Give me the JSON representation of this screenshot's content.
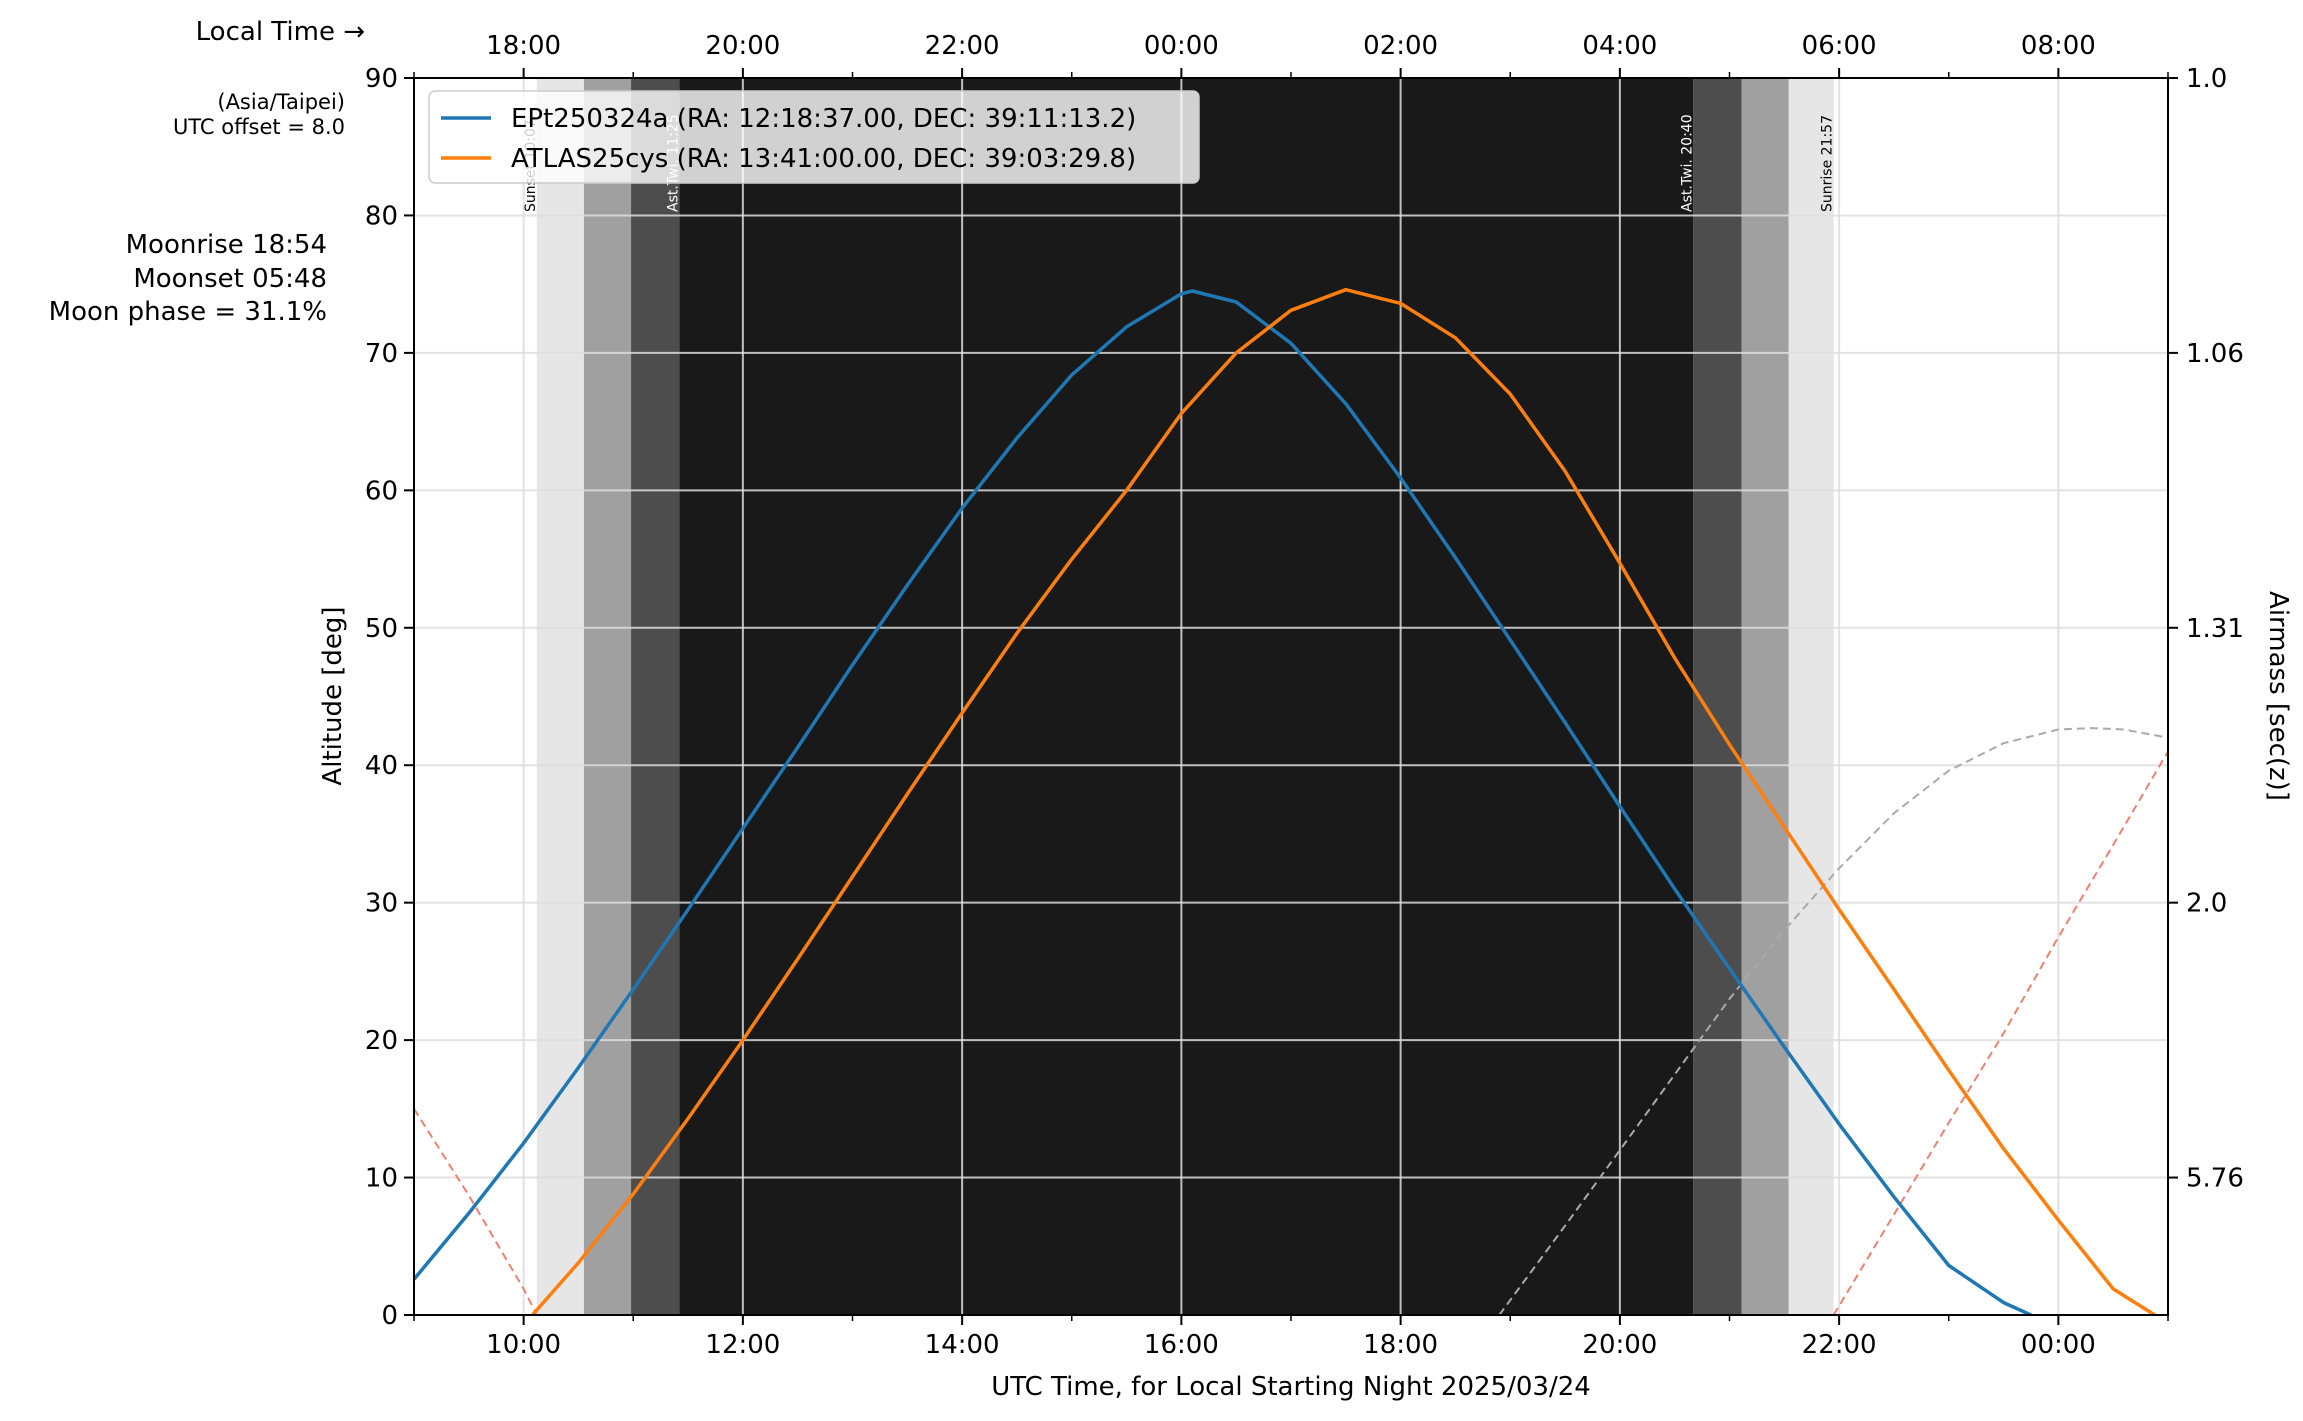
{
  "chart_data": {
    "type": "line",
    "title": "",
    "xlabel": "UTC Time, for Local Starting Night 2025/03/24",
    "ylabel": "Altitude [deg]",
    "y2label": "Airmass [sec(z)]",
    "top_axis_label": "Local Time →",
    "timezone": "(Asia/Taipei)",
    "utc_offset": "UTC offset = 8.0",
    "moon_info": {
      "moonrise": "Moonrise 18:54",
      "moonset": "Moonset 05:48",
      "phase": "Moon phase = 31.1%"
    },
    "xlim_utc_hours": [
      9.0,
      25.0
    ],
    "ylim": [
      0,
      90
    ],
    "x_ticks": [
      {
        "value": 10,
        "label": "10:00"
      },
      {
        "value": 12,
        "label": "12:00"
      },
      {
        "value": 14,
        "label": "14:00"
      },
      {
        "value": 16,
        "label": "16:00"
      },
      {
        "value": 18,
        "label": "18:00"
      },
      {
        "value": 20,
        "label": "20:00"
      },
      {
        "value": 22,
        "label": "22:00"
      },
      {
        "value": 24,
        "label": "00:00"
      }
    ],
    "top_ticks": [
      {
        "value": 10,
        "label": "18:00"
      },
      {
        "value": 12,
        "label": "20:00"
      },
      {
        "value": 14,
        "label": "22:00"
      },
      {
        "value": 16,
        "label": "00:00"
      },
      {
        "value": 18,
        "label": "02:00"
      },
      {
        "value": 20,
        "label": "04:00"
      },
      {
        "value": 22,
        "label": "06:00"
      },
      {
        "value": 24,
        "label": "08:00"
      }
    ],
    "y_ticks": [
      0,
      10,
      20,
      30,
      40,
      50,
      60,
      70,
      80,
      90
    ],
    "airmass_ticks": [
      {
        "alt": 90,
        "label": "1.0"
      },
      {
        "alt": 70,
        "label": "1.06"
      },
      {
        "alt": 50,
        "label": "1.31"
      },
      {
        "alt": 30,
        "label": "2.0"
      },
      {
        "alt": 10,
        "label": "5.76"
      }
    ],
    "twilight_bands": [
      {
        "start": 10.12,
        "end": 10.55,
        "color": "#e6e6e6"
      },
      {
        "start": 10.55,
        "end": 10.98,
        "color": "#a0a0a0"
      },
      {
        "start": 10.98,
        "end": 11.42,
        "color": "#4d4d4d"
      },
      {
        "start": 11.42,
        "end": 20.67,
        "color": "#191919"
      },
      {
        "start": 20.67,
        "end": 21.11,
        "color": "#4d4d4d"
      },
      {
        "start": 21.11,
        "end": 21.54,
        "color": "#a0a0a0"
      },
      {
        "start": 21.54,
        "end": 21.95,
        "color": "#e6e6e6"
      }
    ],
    "event_labels": [
      {
        "x": 10.12,
        "text": "Sunset 10:07",
        "color": "#000000"
      },
      {
        "x": 11.42,
        "text": "Ast.Twi. 11:25",
        "color": "#ffffff"
      },
      {
        "x": 20.67,
        "text": "Ast.Twi. 20:40",
        "color": "#ffffff"
      },
      {
        "x": 21.95,
        "text": "Sunrise 21:57",
        "color": "#000000"
      }
    ],
    "series": [
      {
        "name": "EPt250324a (RA: 12:18:37.00, DEC: 39:11:13.2)",
        "color": "#1f77b4",
        "x": [
          9.0,
          9.5,
          10.0,
          10.5,
          11.0,
          11.5,
          12.0,
          12.5,
          13.0,
          13.5,
          14.0,
          14.5,
          15.0,
          15.5,
          16.0,
          16.1,
          16.5,
          17.0,
          17.5,
          18.0,
          18.5,
          19.0,
          19.5,
          20.0,
          20.5,
          21.0,
          21.5,
          22.0,
          22.5,
          23.0,
          23.5,
          23.75
        ],
        "values": [
          2.6,
          7.4,
          12.5,
          18.0,
          23.7,
          29.5,
          35.4,
          41.3,
          47.3,
          53.1,
          58.7,
          63.8,
          68.4,
          71.9,
          74.3,
          74.5,
          73.7,
          70.7,
          66.3,
          60.9,
          55.1,
          49.1,
          43.1,
          37.0,
          31.0,
          25.2,
          19.5,
          13.9,
          8.6,
          3.6,
          0.9,
          0.0
        ]
      },
      {
        "name": "ATLAS25cys (RA: 13:41:00.00, DEC: 39:03:29.8)",
        "color": "#ff7f0e",
        "x": [
          10.08,
          10.5,
          11.0,
          11.5,
          12.0,
          12.5,
          13.0,
          13.5,
          14.0,
          14.5,
          15.0,
          15.5,
          16.0,
          16.5,
          17.0,
          17.5,
          18.0,
          18.5,
          19.0,
          19.5,
          20.0,
          20.5,
          21.0,
          21.5,
          22.0,
          22.5,
          23.0,
          23.5,
          24.0,
          24.5,
          24.88
        ],
        "values": [
          0.0,
          3.8,
          8.8,
          14.3,
          20.0,
          25.9,
          31.9,
          37.9,
          43.8,
          49.6,
          55.0,
          60.0,
          65.6,
          70.0,
          73.1,
          74.6,
          73.6,
          71.1,
          67.0,
          61.4,
          54.7,
          47.8,
          41.5,
          35.5,
          29.5,
          23.7,
          17.8,
          12.1,
          6.9,
          1.9,
          0.0
        ]
      }
    ],
    "moon_curve": {
      "name": "Moon",
      "color": "#aaaaaa",
      "x": [
        18.9,
        19.5,
        20.0,
        20.5,
        21.0,
        21.5,
        22.0,
        22.5,
        23.0,
        23.5,
        24.0,
        24.3,
        24.6,
        25.0
      ],
      "values": [
        0.0,
        6.5,
        12.0,
        17.5,
        23.0,
        28.0,
        32.5,
        36.5,
        39.6,
        41.6,
        42.6,
        42.7,
        42.6,
        42.0
      ]
    },
    "sun_curves": [
      {
        "name": "Sun (evening)",
        "color": "#f08070",
        "x": [
          9.0,
          9.5,
          10.0,
          10.12
        ],
        "values": [
          15.0,
          8.7,
          1.9,
          0.0
        ]
      },
      {
        "name": "Sun (morning)",
        "color": "#f08070",
        "x": [
          21.95,
          22.5,
          23.0,
          23.5,
          24.0,
          24.5,
          25.0
        ],
        "values": [
          0.0,
          7.3,
          14.0,
          20.5,
          27.5,
          34.2,
          41.0
        ]
      }
    ],
    "legend_position": "upper-left"
  }
}
